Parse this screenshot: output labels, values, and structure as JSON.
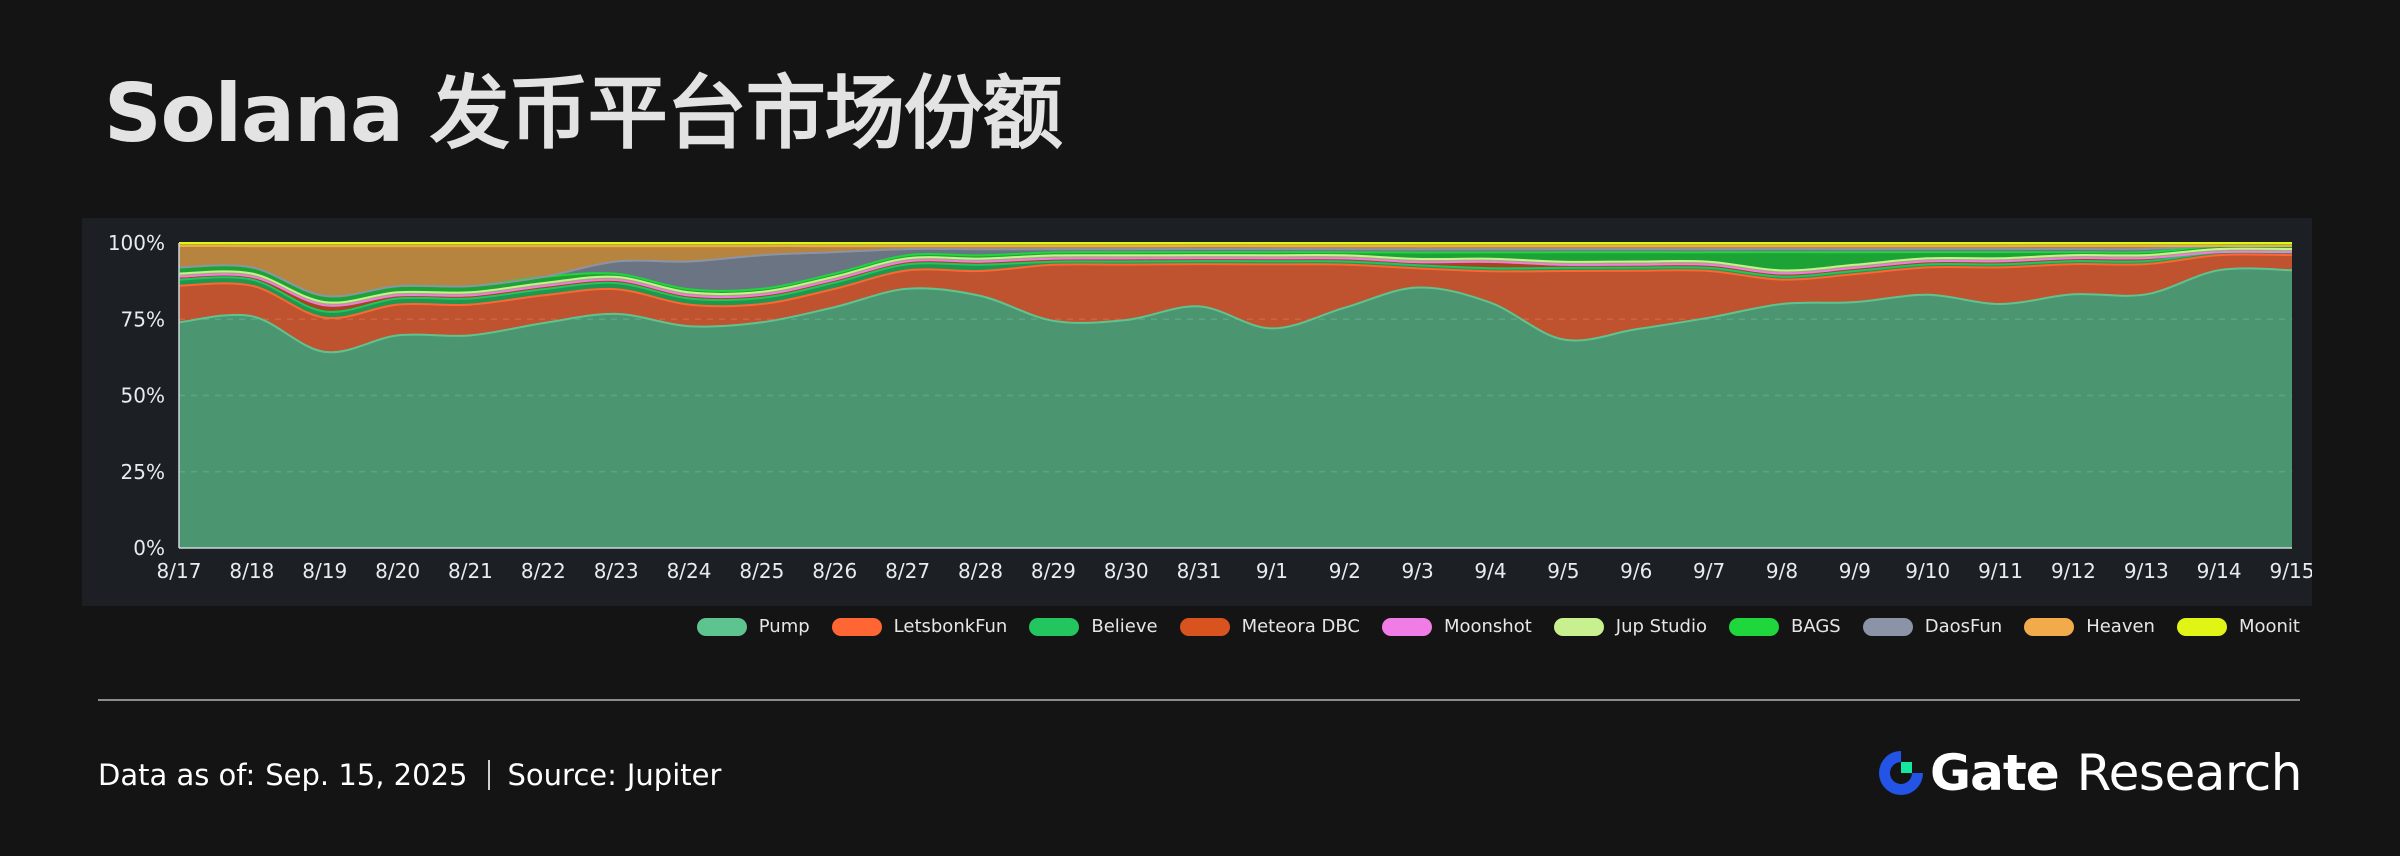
{
  "title": "Solana 发币平台市场份额",
  "footer": {
    "data_as_of_label": "Data as of:",
    "data_as_of_value": "Sep. 15, 2025",
    "source_label": "Source:",
    "source_value": "Jupiter"
  },
  "brand": {
    "name": "Gate",
    "sub": "Research",
    "logo_icon": "gate-logo-icon",
    "logo_colors": [
      "#2354e6",
      "#17e6a1"
    ]
  },
  "chart_data": {
    "type": "area",
    "stacked": true,
    "percent": true,
    "x": [
      "8/17",
      "8/18",
      "8/19",
      "8/20",
      "8/21",
      "8/22",
      "8/23",
      "8/24",
      "8/25",
      "8/26",
      "8/27",
      "8/28",
      "8/29",
      "8/30",
      "8/31",
      "9/1",
      "9/2",
      "9/3",
      "9/4",
      "9/5",
      "9/6",
      "9/7",
      "9/8",
      "9/9",
      "9/10",
      "9/11",
      "9/12",
      "9/13",
      "9/14",
      "9/15"
    ],
    "y_ticks": [
      "0%",
      "25%",
      "50%",
      "75%",
      "100%"
    ],
    "ylim": [
      0,
      100
    ],
    "grid": true,
    "legend_position": "bottom-right",
    "series": [
      {
        "name": "Pump",
        "color": "#5ec48f",
        "values": [
          74,
          76,
          63,
          69,
          69,
          73,
          76,
          72,
          74,
          79,
          85,
          81,
          73,
          74,
          80,
          72,
          78,
          82,
          78,
          67,
          71,
          74,
          80,
          79,
          83,
          80,
          84,
          84,
          92,
          92
        ]
      },
      {
        "name": "LetsbonkFun",
        "color": "#ff6633",
        "values": [
          12,
          10,
          11,
          10,
          10,
          9,
          8,
          7,
          6,
          6,
          6,
          8,
          18,
          18,
          14,
          21,
          14,
          6,
          10,
          22,
          19,
          15,
          8,
          9,
          9,
          12,
          10,
          10,
          5,
          5
        ]
      },
      {
        "name": "Believe",
        "color": "#22c55e",
        "values": [
          2,
          2,
          2,
          2,
          2,
          2,
          2,
          2,
          2,
          2,
          2,
          2,
          1,
          1,
          1,
          1,
          1,
          1,
          1,
          1,
          1,
          1,
          1,
          1,
          1,
          1,
          1,
          1,
          1,
          1
        ]
      },
      {
        "name": "Meteora DBC",
        "color": "#d9531e",
        "values": [
          1,
          1,
          2,
          1,
          1,
          1,
          1,
          1,
          1,
          1,
          1,
          1,
          1,
          1,
          1,
          1,
          1,
          1,
          2,
          1,
          1,
          1,
          1,
          1,
          1,
          1,
          1,
          1,
          0,
          0
        ]
      },
      {
        "name": "Moonshot",
        "color": "#f07de6",
        "values": [
          0,
          0,
          0,
          0,
          0,
          0,
          0,
          0,
          0,
          0,
          0,
          0,
          0,
          0,
          0,
          0,
          0,
          0,
          0,
          0,
          0,
          0,
          0,
          0,
          0,
          0,
          0,
          0,
          0,
          0
        ]
      },
      {
        "name": "Jup Studio",
        "color": "#c8f08f",
        "values": [
          1,
          1,
          1,
          1,
          1,
          1,
          1,
          1,
          1,
          1,
          1,
          1,
          1,
          1,
          1,
          1,
          1,
          1,
          1,
          1,
          1,
          1,
          1,
          1,
          1,
          1,
          1,
          1,
          1,
          1
        ]
      },
      {
        "name": "BAGS",
        "color": "#1fd63c",
        "values": [
          2,
          2,
          2,
          2,
          2,
          2,
          1,
          1,
          1,
          1,
          1,
          1,
          1,
          1,
          1,
          1,
          1,
          2,
          2,
          3,
          3,
          3,
          6,
          4,
          2,
          2,
          1,
          1,
          1,
          1
        ]
      },
      {
        "name": "DaosFun",
        "color": "#8a94a6",
        "values": [
          0,
          0,
          0,
          0,
          0,
          0,
          4,
          9,
          11,
          7,
          2,
          2,
          1,
          1,
          1,
          1,
          1,
          1,
          1,
          1,
          1,
          1,
          1,
          1,
          1,
          1,
          1,
          1,
          0,
          0
        ]
      },
      {
        "name": "Heaven",
        "color": "#f2ab4a",
        "values": [
          7,
          7,
          16,
          13,
          13,
          10,
          5,
          5,
          3,
          2,
          1,
          1,
          1,
          1,
          1,
          1,
          1,
          1,
          1,
          1,
          1,
          1,
          1,
          1,
          1,
          1,
          1,
          1,
          0,
          0
        ]
      },
      {
        "name": "Moonit",
        "color": "#e0f516",
        "values": [
          1,
          1,
          1,
          1,
          1,
          1,
          1,
          1,
          1,
          1,
          1,
          1,
          1,
          1,
          1,
          1,
          1,
          1,
          1,
          1,
          1,
          1,
          1,
          1,
          1,
          1,
          1,
          1,
          1,
          1
        ]
      }
    ]
  }
}
